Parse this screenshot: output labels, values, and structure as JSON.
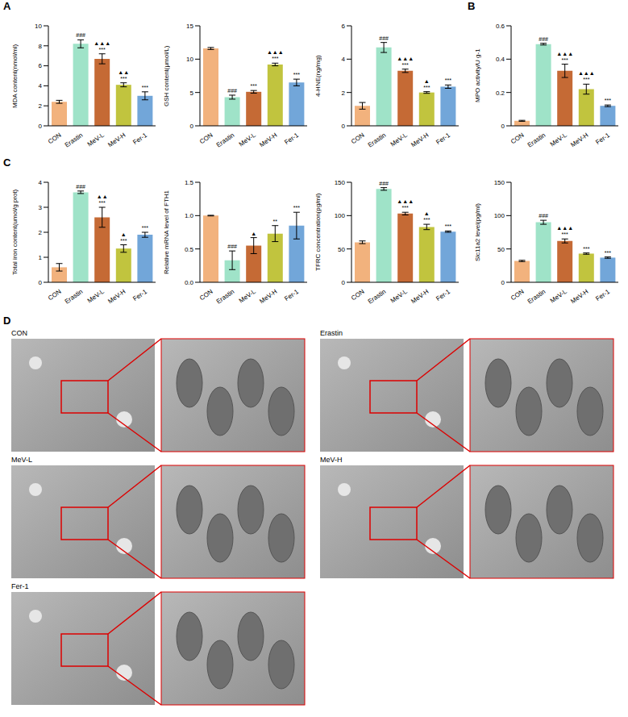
{
  "panel_labels": [
    "A",
    "B",
    "C",
    "D"
  ],
  "chart_data": [
    {
      "type": "bar",
      "y_label": "MDA content(nmol/ml)",
      "categories": [
        "CON",
        "Erastin",
        "MeV-L",
        "MeV-H",
        "Fer-1"
      ],
      "values": [
        2.4,
        8.2,
        6.7,
        4.1,
        3.0
      ],
      "errors": [
        0.15,
        0.4,
        0.5,
        0.2,
        0.4
      ],
      "annotations": [
        [],
        [
          "###"
        ],
        [
          "▲▲▲",
          "***"
        ],
        [
          "▲▲",
          "***"
        ],
        [
          "***"
        ]
      ],
      "colors": [
        "#F2B27D",
        "#9FE3C8",
        "#C56A35",
        "#C1C43E",
        "#72A6D9"
      ],
      "ylim": [
        0,
        10
      ],
      "yticks": [
        0,
        2,
        4,
        6,
        8,
        10
      ]
    },
    {
      "type": "bar",
      "y_label": "GSH content(μmol/L)",
      "categories": [
        "CON",
        "Erastin",
        "MeV-L",
        "MeV-H",
        "Fer-1"
      ],
      "values": [
        11.6,
        4.3,
        5.1,
        9.2,
        6.5
      ],
      "errors": [
        0.15,
        0.3,
        0.2,
        0.2,
        0.5
      ],
      "annotations": [
        [],
        [
          "###"
        ],
        [
          "***"
        ],
        [
          "▲▲▲",
          "***"
        ],
        [
          "***"
        ]
      ],
      "colors": [
        "#F2B27D",
        "#9FE3C8",
        "#C56A35",
        "#C1C43E",
        "#72A6D9"
      ],
      "ylim": [
        0,
        15
      ],
      "yticks": [
        0,
        5,
        10,
        15
      ]
    },
    {
      "type": "bar",
      "y_label": "4-HNE(ng/mg)",
      "categories": [
        "CON",
        "Erastin",
        "MeV-L",
        "MeV-H",
        "Fer-1"
      ],
      "values": [
        1.2,
        4.7,
        3.3,
        2.0,
        2.35
      ],
      "errors": [
        0.2,
        0.3,
        0.1,
        0.05,
        0.1
      ],
      "annotations": [
        [],
        [
          "###"
        ],
        [
          "▲▲▲",
          "***"
        ],
        [
          "▲",
          "***"
        ],
        [
          "***"
        ]
      ],
      "colors": [
        "#F2B27D",
        "#9FE3C8",
        "#C56A35",
        "#C1C43E",
        "#72A6D9"
      ],
      "ylim": [
        0,
        6
      ],
      "yticks": [
        0,
        2,
        4,
        6
      ]
    },
    {
      "type": "bar",
      "y_label": "MPO activity/U g-1",
      "categories": [
        "CON",
        "Erastin",
        "MeV-L",
        "MeV-H",
        "Fer-1"
      ],
      "values": [
        0.03,
        0.49,
        0.33,
        0.22,
        0.12
      ],
      "errors": [
        0.003,
        0.005,
        0.04,
        0.03,
        0.005
      ],
      "annotations": [
        [],
        [
          "###"
        ],
        [
          "▲▲▲",
          "***"
        ],
        [
          "▲▲▲",
          "***"
        ],
        [
          "***"
        ]
      ],
      "colors": [
        "#F2B27D",
        "#9FE3C8",
        "#C56A35",
        "#C1C43E",
        "#72A6D9"
      ],
      "ylim": [
        0,
        0.6
      ],
      "yticks": [
        0,
        0.2,
        0.4,
        0.6
      ]
    },
    {
      "type": "bar",
      "y_label": "Total iron content(umol/g prot)",
      "categories": [
        "CON",
        "Erastin",
        "MeV-L",
        "MeV-H",
        "Fer-1"
      ],
      "values": [
        0.6,
        3.6,
        2.6,
        1.35,
        1.9
      ],
      "errors": [
        0.15,
        0.05,
        0.4,
        0.15,
        0.1
      ],
      "annotations": [
        [],
        [
          "###"
        ],
        [
          "▲▲",
          "***"
        ],
        [
          "▲",
          "***"
        ],
        [
          "***"
        ]
      ],
      "colors": [
        "#F2B27D",
        "#9FE3C8",
        "#C56A35",
        "#C1C43E",
        "#72A6D9"
      ],
      "ylim": [
        0,
        4
      ],
      "yticks": [
        0,
        1,
        2,
        3,
        4
      ]
    },
    {
      "type": "bar",
      "y_label": "Relative mRNA level of FTH1",
      "categories": [
        "CON",
        "Erastin",
        "MeV-L",
        "MeV-H",
        "Fer-1"
      ],
      "values": [
        1.0,
        0.33,
        0.55,
        0.73,
        0.85
      ],
      "errors": [
        0.005,
        0.14,
        0.12,
        0.12,
        0.2
      ],
      "annotations": [
        [],
        [
          "###"
        ],
        [
          "▲"
        ],
        [
          "**"
        ],
        [
          "***"
        ]
      ],
      "colors": [
        "#F2B27D",
        "#9FE3C8",
        "#C56A35",
        "#C1C43E",
        "#72A6D9"
      ],
      "ylim": [
        0,
        1.5
      ],
      "yticks": [
        {
          "value": 0,
          "label": "0.0"
        },
        0.5,
        {
          "value": 1,
          "label": "1.0"
        },
        1.5
      ]
    },
    {
      "type": "bar",
      "y_label": "TFRC concentration(pg/ml)",
      "categories": [
        "CON",
        "Erastin",
        "MeV-L",
        "MeV-H",
        "Fer-1"
      ],
      "values": [
        60,
        140,
        103,
        83,
        76
      ],
      "errors": [
        2,
        2,
        2,
        4,
        1
      ],
      "annotations": [
        [],
        [
          "###"
        ],
        [
          "▲▲▲",
          "***"
        ],
        [
          "▲",
          "***"
        ],
        [
          "***"
        ]
      ],
      "colors": [
        "#F2B27D",
        "#9FE3C8",
        "#C56A35",
        "#C1C43E",
        "#72A6D9"
      ],
      "ylim": [
        0,
        150
      ],
      "yticks": [
        0,
        50,
        100,
        150
      ]
    },
    {
      "type": "bar",
      "y_label": "Slc11a2 level(pg/ml)",
      "categories": [
        "CON",
        "Erastin",
        "MeV-L",
        "MeV-H",
        "Fer-1"
      ],
      "values": [
        32,
        90,
        62,
        43,
        37
      ],
      "errors": [
        1,
        3,
        3,
        1,
        1
      ],
      "annotations": [
        [],
        [
          "###"
        ],
        [
          "▲▲▲",
          "***"
        ],
        [
          "***"
        ],
        [
          "***"
        ]
      ],
      "colors": [
        "#F2B27D",
        "#9FE3C8",
        "#C56A35",
        "#C1C43E",
        "#72A6D9"
      ],
      "ylim": [
        0,
        150
      ],
      "yticks": [
        0,
        50,
        100,
        150
      ]
    }
  ],
  "micrographs": {
    "groups": [
      "CON",
      "Erastin",
      "MeV-L",
      "MeV-H",
      "Fer-1"
    ]
  }
}
